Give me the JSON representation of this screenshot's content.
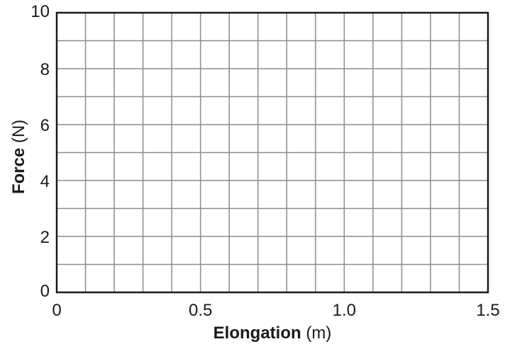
{
  "chart_data": {
    "type": "scatter",
    "title": "",
    "x_axis": {
      "label_bold": "Elongation",
      "label_unit": "(m)",
      "range": [
        0,
        1.5
      ],
      "ticks": [
        {
          "value": 0,
          "label": "0"
        },
        {
          "value": 0.5,
          "label": "0.5"
        },
        {
          "value": 1.0,
          "label": "1.0"
        },
        {
          "value": 1.5,
          "label": "1.5"
        }
      ],
      "grid_step": 0.1
    },
    "y_axis": {
      "label_bold": "Force",
      "label_unit": "(N)",
      "range": [
        0,
        10
      ],
      "ticks": [
        {
          "value": 0,
          "label": "0"
        },
        {
          "value": 2,
          "label": "2"
        },
        {
          "value": 4,
          "label": "4"
        },
        {
          "value": 6,
          "label": "6"
        },
        {
          "value": 8,
          "label": "8"
        },
        {
          "value": 10,
          "label": "10"
        }
      ],
      "grid_step": 1
    },
    "grid": true,
    "series": [],
    "colors": {
      "grid": "#8c8c8c",
      "frame": "#1a1a1a",
      "text": "#1a1a1a"
    }
  }
}
